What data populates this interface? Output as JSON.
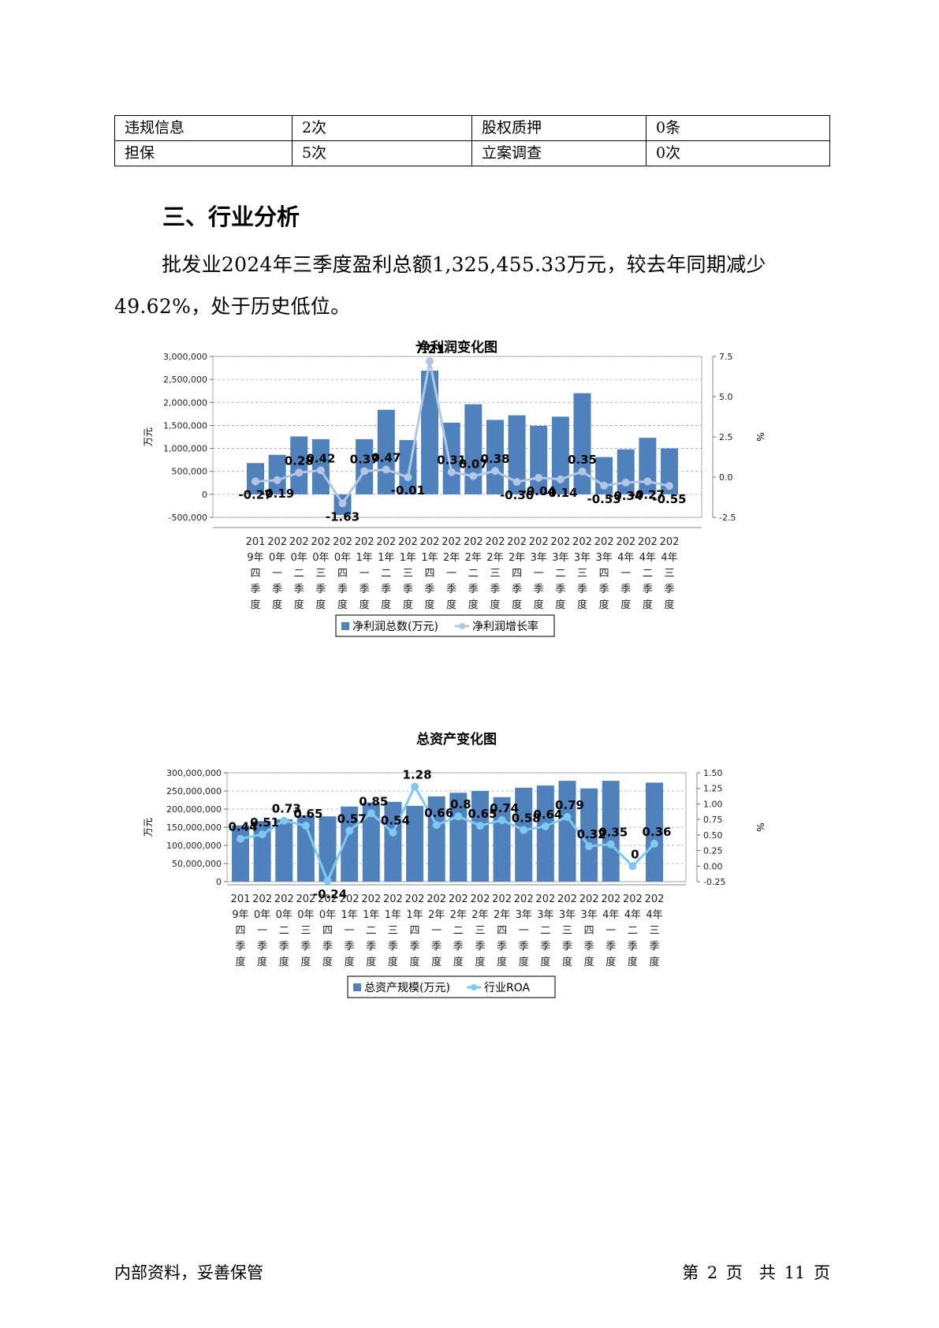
{
  "table": {
    "rows": [
      [
        "违规信息",
        "2次",
        "股权质押",
        "0条"
      ],
      [
        "担保",
        "5次",
        "立案调查",
        "0次"
      ]
    ]
  },
  "section_heading": "三、行业分析",
  "body_text": "批发业2024年三季度盈利总额1,325,455.33万元，较去年同期减少49.62%，处于历史低位。",
  "chart_data": [
    {
      "type": "bar",
      "title": "净利润变化图",
      "ylabel": "万元",
      "y2label": "%",
      "ylim": [
        -500000,
        3000000
      ],
      "y_ticks": [
        "3,000,000",
        "2,500,000",
        "2,000,000",
        "1,500,000",
        "1,000,000",
        "500,000",
        "0",
        "-500,000"
      ],
      "y2lim": [
        -2.5,
        7.5
      ],
      "y2_ticks": [
        "7.5",
        "5.0",
        "2.5",
        "0.0",
        "-2.5"
      ],
      "categories": [
        "2019年四季度",
        "2020年一季度",
        "2020年二季度",
        "2020年三季度",
        "2020年四季度",
        "2021年一季度",
        "2021年二季度",
        "2021年三季度",
        "2021年四季度",
        "2022年一季度",
        "2022年二季度",
        "2022年三季度",
        "2022年四季度",
        "2023年一季度",
        "2023年二季度",
        "2023年三季度",
        "2023年四季度",
        "2024年一季度",
        "2024年二季度",
        "2024年三季度"
      ],
      "series": [
        {
          "name": "净利润总数(万元)",
          "kind": "bar",
          "color": "#4f81bd",
          "values": [
            680000,
            860000,
            1260000,
            1200000,
            -450000,
            1200000,
            1840000,
            1180000,
            2690000,
            1560000,
            1960000,
            1620000,
            1720000,
            1490000,
            1690000,
            2200000,
            810000,
            980000,
            1230000,
            1000000
          ]
        },
        {
          "name": "净利润增长率",
          "kind": "line",
          "color": "#b3c6e4",
          "values": [
            -0.27,
            -0.19,
            0.28,
            0.42,
            -1.63,
            0.37,
            0.47,
            -0.01,
            7.21,
            0.31,
            0.07,
            0.38,
            -0.3,
            -0.04,
            -0.14,
            0.35,
            -0.53,
            -0.34,
            -0.27,
            -0.55
          ],
          "labels": [
            "-0.27",
            "-0.19",
            "0.28",
            "0.42",
            "-1.63",
            "0.37",
            "0.47",
            "-0.01",
            "7.21",
            "0.31",
            "0.07",
            "0.38",
            "-0.30",
            "-0.04",
            "-0.14",
            "0.35",
            "-0.53",
            "-0.34",
            "-0.27",
            "-0.55"
          ]
        }
      ],
      "legend": "bottom",
      "grid": true
    },
    {
      "type": "bar",
      "title": "总资产变化图",
      "ylabel": "万元",
      "y2label": "%",
      "ylim": [
        0,
        300000000
      ],
      "y_ticks": [
        "300,000,000",
        "250,000,000",
        "200,000,000",
        "150,000,000",
        "100,000,000",
        "50,000,000",
        "0"
      ],
      "y2lim": [
        -0.25,
        1.5
      ],
      "y2_ticks": [
        "1.50",
        "1.25",
        "1.00",
        "0.75",
        "0.50",
        "0.25",
        "0.00",
        "-0.25"
      ],
      "categories": [
        "2019年四季度",
        "2020年一季度",
        "2020年二季度",
        "2020年三季度",
        "2020年四季度",
        "2021年一季度",
        "2021年二季度",
        "2021年三季度",
        "2021年四季度",
        "2022年一季度",
        "2022年二季度",
        "2022年三季度",
        "2022年四季度",
        "2023年一季度",
        "2023年二季度",
        "2023年三季度",
        "2023年四季度",
        "2024年一季度",
        "2024年二季度",
        "2024年三季度"
      ],
      "series": [
        {
          "name": "总资产规模(万元)",
          "kind": "bar",
          "color": "#4f81bd",
          "values": [
            155000000,
            167000000,
            172000000,
            183000000,
            180000000,
            207000000,
            218000000,
            220000000,
            209000000,
            235000000,
            245000000,
            250000000,
            233000000,
            259000000,
            265000000,
            278000000,
            257000000,
            278000000,
            null,
            273000000
          ]
        },
        {
          "name": "行业ROA",
          "kind": "line",
          "color": "#7fc8f0",
          "values": [
            0.44,
            0.51,
            0.73,
            0.65,
            -0.24,
            0.57,
            0.85,
            0.54,
            1.28,
            0.66,
            0.8,
            0.65,
            0.74,
            0.58,
            0.64,
            0.79,
            0.32,
            0.35,
            0,
            0.36
          ],
          "labels": [
            "0.44",
            "0.51",
            "0.73",
            "0.65",
            "-0.24",
            "0.57",
            "0.85",
            "0.54",
            "1.28",
            "0.66",
            "0.8",
            "0.65",
            "0.74",
            "0.58",
            "0.64",
            "0.79",
            "0.32",
            "0.35",
            "0",
            "0.36"
          ]
        }
      ],
      "legend": "bottom",
      "grid": true
    }
  ],
  "footer": {
    "left": "内部资料，妥善保管",
    "right": "第 2 页　共 11 页"
  }
}
